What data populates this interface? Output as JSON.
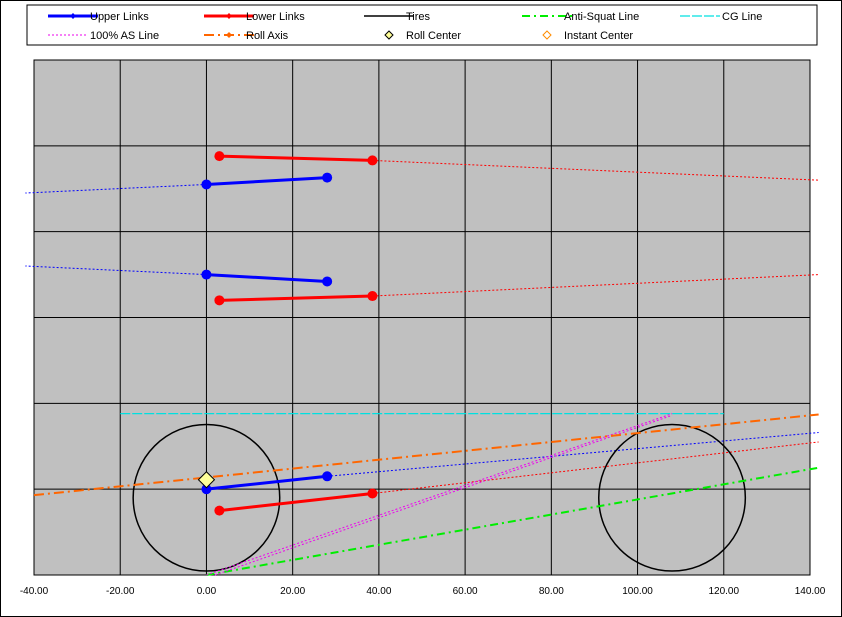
{
  "chart_data": {
    "type": "line",
    "xlim": [
      -40,
      140
    ],
    "ylim": [
      0,
      60
    ],
    "x_ticks": [
      "-40.00",
      "-20.00",
      "0.00",
      "20.00",
      "40.00",
      "60.00",
      "80.00",
      "100.00",
      "120.00",
      "140.00"
    ],
    "grid": true,
    "legend_position": "top",
    "series": [
      {
        "name": "Upper Links",
        "color": "#0000ff",
        "segments": [
          [
            [
              0,
              45.5
            ],
            [
              28,
              46.3
            ]
          ],
          [
            [
              0,
              35.0
            ],
            [
              28,
              34.2
            ]
          ],
          [
            [
              0,
              10.0
            ],
            [
              28,
              11.5
            ]
          ]
        ]
      },
      {
        "name": "Lower Links",
        "color": "#ff0000",
        "segments": [
          [
            [
              3,
              48.8
            ],
            [
              38.5,
              48.3
            ]
          ],
          [
            [
              3,
              32.0
            ],
            [
              38.5,
              32.5
            ]
          ],
          [
            [
              3,
              7.5
            ],
            [
              38.5,
              9.5
            ]
          ]
        ]
      },
      {
        "name": "Tires",
        "color": "#000000",
        "circles": [
          {
            "cx": 0,
            "cy": 9,
            "r": 17
          },
          {
            "cx": 108,
            "cy": 9,
            "r": 17
          }
        ]
      },
      {
        "name": "Anti-Squat Line",
        "color": "#00ee00",
        "points": [
          [
            0,
            0
          ],
          [
            142,
            12.5
          ]
        ]
      },
      {
        "name": "CG Line",
        "color": "#00e0e0",
        "points": [
          [
            -20,
            18.8
          ],
          [
            120,
            18.8
          ]
        ]
      },
      {
        "name": "100% AS Line",
        "color": "#ee00ee",
        "points": [
          [
            0,
            0
          ],
          [
            108,
            18.8
          ]
        ],
        "points2": [
          [
            2,
            0
          ],
          [
            108,
            18.6
          ]
        ]
      },
      {
        "name": "Roll Axis",
        "color": "#ff6600",
        "points": [
          [
            -40,
            9.3
          ],
          [
            142,
            18.7
          ]
        ]
      },
      {
        "name": "Roll Center",
        "color": "#ffff99",
        "points": [
          [
            0,
            11.1
          ]
        ]
      },
      {
        "name": "Instant Center",
        "color": "#ff8c00",
        "points": []
      }
    ],
    "extensions": [
      {
        "color": "#0000ff",
        "points": [
          [
            0,
            45.5
          ],
          [
            -42,
            44.5
          ]
        ]
      },
      {
        "color": "#0000ff",
        "points": [
          [
            0,
            35.0
          ],
          [
            -42,
            36.0
          ]
        ]
      },
      {
        "color": "#0000ff",
        "points": [
          [
            28,
            11.5
          ],
          [
            142,
            16.6
          ]
        ]
      },
      {
        "color": "#ff0000",
        "points": [
          [
            38.5,
            48.3
          ],
          [
            142,
            46.0
          ]
        ]
      },
      {
        "color": "#ff0000",
        "points": [
          [
            38.5,
            32.5
          ],
          [
            142,
            35.0
          ]
        ]
      },
      {
        "color": "#ff0000",
        "points": [
          [
            38.5,
            9.5
          ],
          [
            142,
            15.5
          ]
        ]
      }
    ]
  }
}
